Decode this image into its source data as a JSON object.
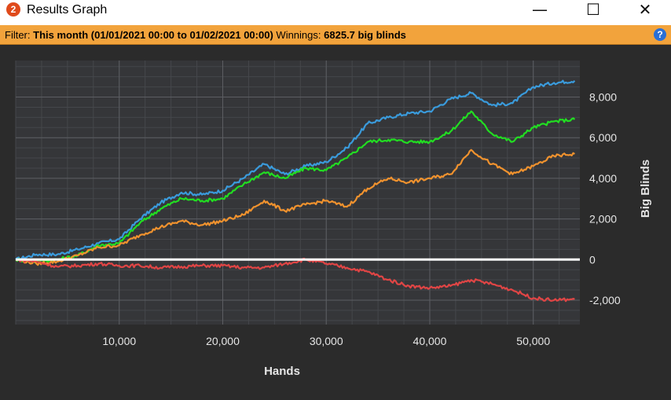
{
  "window": {
    "app_icon_glyph": "2",
    "title": "Results Graph",
    "controls": {
      "minimize": "—",
      "maximize": "☐",
      "close": "✕"
    }
  },
  "filter": {
    "label": "Filter:",
    "period": "This month (01/01/2021 00:00 to 01/02/2021 00:00)",
    "winnings_label": "Winnings:",
    "winnings_value": "6825.7 big blinds",
    "help_glyph": "?"
  },
  "chart_data": {
    "type": "line",
    "xlabel": "Hands",
    "ylabel": "Big Blinds",
    "xlim": [
      0,
      54500
    ],
    "ylim": [
      -3200,
      9800
    ],
    "x_ticks": [
      10000,
      20000,
      30000,
      40000,
      50000
    ],
    "x_tick_labels": [
      "10,000",
      "20,000",
      "30,000",
      "40,000",
      "50,000"
    ],
    "y_ticks": [
      8000,
      6000,
      4000,
      2000,
      0,
      -2000
    ],
    "y_tick_labels": [
      "8,000",
      "6,000",
      "4,000",
      "2,000",
      "0",
      "-2,000"
    ],
    "grid": true,
    "series": [
      {
        "color": "#3a9bdc",
        "x": [
          0,
          2000,
          4000,
          6000,
          8000,
          10000,
          12000,
          14000,
          16000,
          18000,
          20000,
          22000,
          24000,
          26000,
          28000,
          30000,
          32000,
          34000,
          36000,
          38000,
          40000,
          42000,
          44000,
          46000,
          48000,
          50000,
          52000,
          54000
        ],
        "y": [
          0,
          250,
          250,
          500,
          800,
          1000,
          2000,
          2800,
          3300,
          3200,
          3400,
          4000,
          4700,
          4200,
          4600,
          4800,
          5500,
          6700,
          7000,
          7200,
          7300,
          7900,
          8200,
          7600,
          7700,
          8500,
          8700,
          8800
        ]
      },
      {
        "color": "#22dd22",
        "x": [
          0,
          2000,
          4000,
          6000,
          8000,
          10000,
          12000,
          14000,
          16000,
          18000,
          20000,
          22000,
          24000,
          26000,
          28000,
          30000,
          32000,
          34000,
          36000,
          38000,
          40000,
          42000,
          44000,
          46000,
          48000,
          50000,
          52000,
          54000
        ],
        "y": [
          0,
          -100,
          0,
          200,
          700,
          800,
          1800,
          2500,
          3000,
          2900,
          3000,
          3700,
          4300,
          4000,
          4500,
          4400,
          5000,
          5800,
          5900,
          5800,
          5800,
          6300,
          7300,
          6200,
          5800,
          6500,
          6800,
          6900
        ]
      },
      {
        "color": "#f0922e",
        "x": [
          0,
          2000,
          4000,
          6000,
          8000,
          10000,
          12000,
          14000,
          16000,
          18000,
          20000,
          22000,
          24000,
          26000,
          28000,
          30000,
          32000,
          34000,
          36000,
          38000,
          40000,
          42000,
          44000,
          46000,
          48000,
          50000,
          52000,
          54000
        ],
        "y": [
          0,
          -200,
          -100,
          200,
          600,
          700,
          1200,
          1600,
          1900,
          1700,
          1900,
          2200,
          2900,
          2400,
          2700,
          2900,
          2600,
          3500,
          4000,
          3800,
          4000,
          4200,
          5400,
          4700,
          4200,
          4600,
          5100,
          5200
        ]
      },
      {
        "color": "#e04545",
        "x": [
          0,
          2000,
          4000,
          6000,
          8000,
          10000,
          12000,
          14000,
          16000,
          18000,
          20000,
          22000,
          24000,
          26000,
          28000,
          30000,
          32000,
          34000,
          36000,
          38000,
          40000,
          42000,
          44000,
          46000,
          48000,
          50000,
          52000,
          54000
        ],
        "y": [
          0,
          -100,
          -350,
          -300,
          -200,
          -300,
          -300,
          -400,
          -350,
          -300,
          -300,
          -400,
          -400,
          -200,
          0,
          -200,
          -400,
          -600,
          -1000,
          -1300,
          -1400,
          -1300,
          -1000,
          -1200,
          -1500,
          -1900,
          -2000,
          -1950
        ]
      }
    ],
    "zero_line_color": "#ffffff",
    "background": "#2b2b2b",
    "plot_background": "#353639"
  }
}
